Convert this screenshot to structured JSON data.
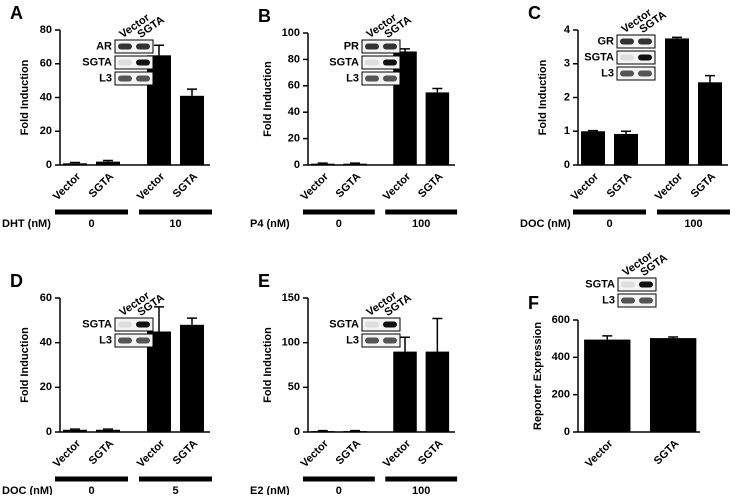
{
  "chart_data": [
    {
      "type": "bar",
      "panel": "A",
      "y_label": "Fold Induction",
      "color": "#000000",
      "categories": [
        "Vector",
        "SGTA",
        "Vector",
        "SGTA"
      ],
      "values": [
        1,
        2,
        65,
        41
      ],
      "errors": [
        0.5,
        0.7,
        6,
        4
      ],
      "ylim": [
        0,
        80
      ],
      "yticks": [
        0,
        20,
        40,
        60,
        80
      ],
      "condition_label": "DHT (nM)",
      "groups": [
        "0",
        "10"
      ],
      "blot": {
        "lanes": [
          "Vector",
          "SGTA"
        ],
        "rows": [
          "AR",
          "SGTA",
          "L3"
        ]
      }
    },
    {
      "type": "bar",
      "panel": "B",
      "y_label": "Fold Induction",
      "color": "#000000",
      "categories": [
        "Vector",
        "SGTA",
        "Vector",
        "SGTA"
      ],
      "values": [
        1,
        1,
        86,
        55
      ],
      "errors": [
        0.4,
        0.4,
        2,
        3
      ],
      "ylim": [
        0,
        100
      ],
      "yticks": [
        0,
        20,
        40,
        60,
        80,
        100
      ],
      "condition_label": "P4 (nM)",
      "groups": [
        "0",
        "100"
      ],
      "blot": {
        "lanes": [
          "Vector",
          "SGTA"
        ],
        "rows": [
          "PR",
          "SGTA",
          "L3"
        ]
      }
    },
    {
      "type": "bar",
      "panel": "C",
      "y_label": "Fold Induction",
      "color": "#000000",
      "categories": [
        "Vector",
        "SGTA",
        "Vector",
        "SGTA"
      ],
      "values": [
        1,
        0.92,
        3.75,
        2.45
      ],
      "errors": [
        0.02,
        0.08,
        0.03,
        0.2
      ],
      "ylim": [
        0,
        4
      ],
      "yticks": [
        0,
        1,
        2,
        3,
        4
      ],
      "condition_label": "DOC (nM)",
      "groups": [
        "0",
        "100"
      ],
      "blot": {
        "lanes": [
          "Vector",
          "SGTA"
        ],
        "rows": [
          "GR",
          "SGTA",
          "L3"
        ]
      }
    },
    {
      "type": "bar",
      "panel": "D",
      "y_label": "Fold Induction",
      "color": "#000000",
      "categories": [
        "Vector",
        "SGTA",
        "Vector",
        "SGTA"
      ],
      "values": [
        1,
        1,
        45,
        48
      ],
      "errors": [
        0.3,
        0.3,
        11,
        3
      ],
      "ylim": [
        0,
        60
      ],
      "yticks": [
        0,
        20,
        40,
        60
      ],
      "condition_label": "DOC (nM)",
      "groups": [
        "0",
        "5"
      ],
      "blot": {
        "lanes": [
          "Vector",
          "SGTA"
        ],
        "rows": [
          "SGTA",
          "L3"
        ]
      }
    },
    {
      "type": "bar",
      "panel": "E",
      "y_label": "Fold Induction",
      "color": "#000000",
      "categories": [
        "Vector",
        "SGTA",
        "Vector",
        "SGTA"
      ],
      "values": [
        1,
        1,
        90,
        90
      ],
      "errors": [
        0.5,
        0.5,
        16,
        37
      ],
      "ylim": [
        0,
        150
      ],
      "yticks": [
        0,
        50,
        100,
        150
      ],
      "condition_label": "E2 (nM)",
      "groups": [
        "0",
        "100"
      ],
      "blot": {
        "lanes": [
          "Vector",
          "SGTA"
        ],
        "rows": [
          "SGTA",
          "L3"
        ]
      }
    },
    {
      "type": "bar",
      "panel": "F",
      "y_label": "Reporter Expression",
      "color": "#000000",
      "categories": [
        "Vector",
        "SGTA"
      ],
      "values": [
        495,
        503
      ],
      "errors": [
        20,
        6
      ],
      "ylim": [
        0,
        600
      ],
      "yticks": [
        0,
        200,
        400,
        600
      ],
      "blot": {
        "lanes": [
          "Vector",
          "SGTA"
        ],
        "rows": [
          "SGTA",
          "L3"
        ]
      }
    }
  ]
}
